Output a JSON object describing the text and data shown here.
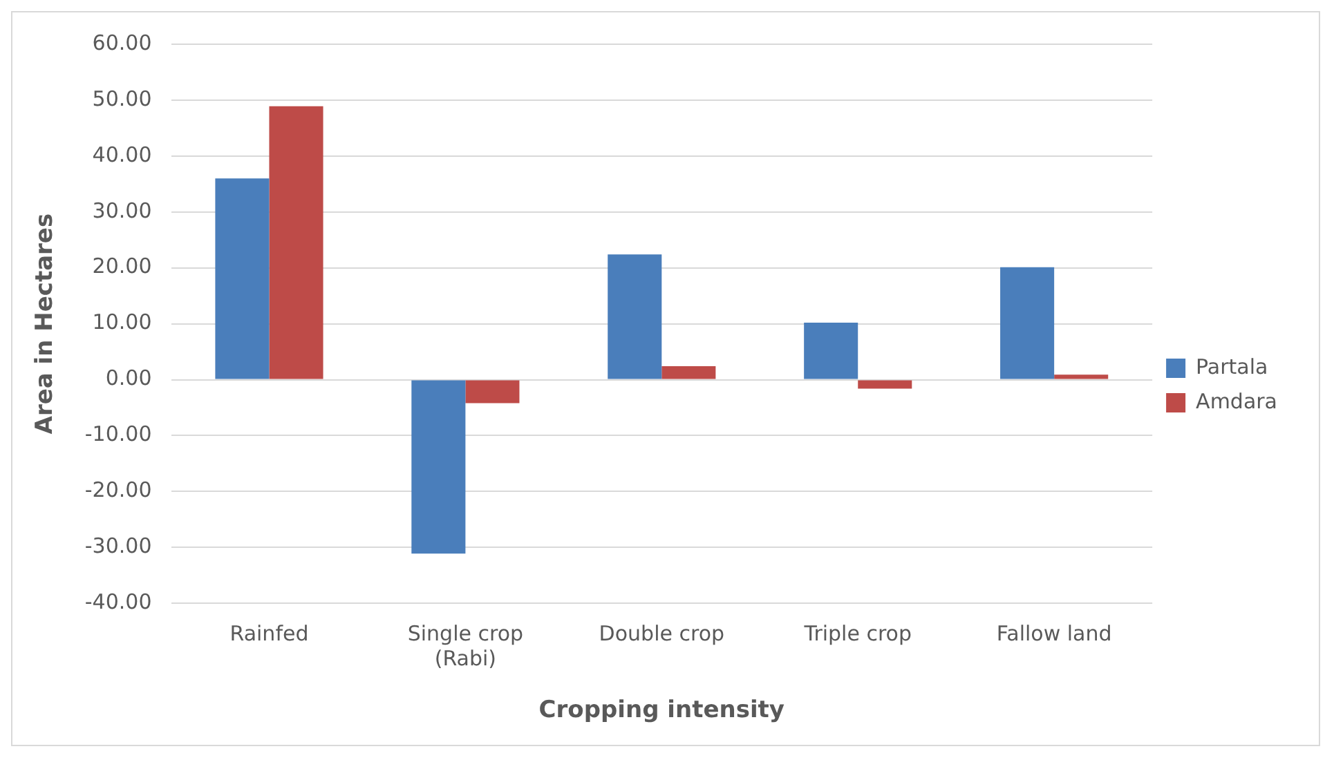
{
  "chart_data": {
    "type": "bar",
    "xlabel": "Cropping intensity",
    "ylabel": "Area in Hectares",
    "categories": [
      "Rainfed",
      "Single crop (Rabi)",
      "Double crop",
      "Triple crop",
      "Fallow land"
    ],
    "series": [
      {
        "name": "Partala",
        "color": "#4a7ebb",
        "values": [
          36.0,
          -31.1,
          22.4,
          10.2,
          20.1
        ]
      },
      {
        "name": "Amdara",
        "color": "#be4b48",
        "values": [
          48.9,
          -4.2,
          2.4,
          -1.6,
          0.9
        ]
      }
    ],
    "ylim": [
      -40,
      60
    ],
    "yticks": [
      {
        "value": -40,
        "label": "-40.00"
      },
      {
        "value": -30,
        "label": "-30.00"
      },
      {
        "value": -20,
        "label": "-20.00"
      },
      {
        "value": -10,
        "label": "-10.00"
      },
      {
        "value": 0,
        "label": "0.00"
      },
      {
        "value": 10,
        "label": "10.00"
      },
      {
        "value": 20,
        "label": "20.00"
      },
      {
        "value": 30,
        "label": "30.00"
      },
      {
        "value": 40,
        "label": "40.00"
      },
      {
        "value": 50,
        "label": "50.00"
      },
      {
        "value": 60,
        "label": "60.00"
      }
    ],
    "grid": "y",
    "legend": "right"
  }
}
